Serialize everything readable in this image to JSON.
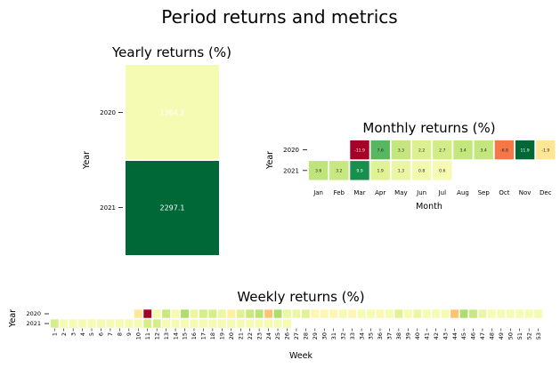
{
  "figure_title": "Period returns and metrics",
  "chart_data": [
    {
      "type": "heatmap",
      "title": "Yearly returns (%)",
      "xlabel": "",
      "ylabel": "Year",
      "x_categories": [
        ""
      ],
      "y_categories": [
        "2020",
        "2021"
      ],
      "values": [
        [
          1364.2
        ],
        [
          2297.1
        ]
      ],
      "value_labels": [
        [
          "1364.2"
        ],
        [
          "2297.1"
        ]
      ],
      "colormap": "RdYlGn",
      "grid": false
    },
    {
      "type": "heatmap",
      "title": "Monthly returns (%)",
      "xlabel": "Month",
      "ylabel": "Year",
      "x_categories": [
        "Jan",
        "Feb",
        "Mar",
        "Apr",
        "May",
        "Jun",
        "Jul",
        "Aug",
        "Sep",
        "Oct",
        "Nov",
        "Dec"
      ],
      "y_categories": [
        "2020",
        "2021"
      ],
      "values": [
        [
          null,
          null,
          -11.9,
          7.6,
          3.3,
          2.2,
          2.7,
          3.4,
          3.4,
          -6.8,
          11.9,
          -1.9
        ],
        [
          3.6,
          3.2,
          9.9,
          1.9,
          1.3,
          0.8,
          0.6,
          null,
          null,
          null,
          null,
          null
        ]
      ],
      "value_labels": [
        [
          "",
          "",
          "-11.9",
          "7.6",
          "3.3",
          "2.2",
          "2.7",
          "3.4",
          "3.4",
          "-6.8",
          "11.9",
          "-1.9"
        ],
        [
          "3.6",
          "3.2",
          "9.9",
          "1.9",
          "1.3",
          "0.8",
          "0.6",
          "",
          "",
          "",
          "",
          ""
        ]
      ],
      "colormap": "RdYlGn",
      "grid": false
    },
    {
      "type": "heatmap",
      "title": "Weekly returns (%)",
      "xlabel": "Week",
      "ylabel": "Year",
      "x_categories": [
        "1",
        "2",
        "3",
        "4",
        "5",
        "6",
        "7",
        "8",
        "9",
        "10",
        "11",
        "12",
        "13",
        "14",
        "15",
        "16",
        "17",
        "18",
        "19",
        "20",
        "21",
        "22",
        "23",
        "24",
        "25",
        "26",
        "27",
        "28",
        "29",
        "30",
        "31",
        "32",
        "33",
        "34",
        "35",
        "36",
        "37",
        "38",
        "39",
        "40",
        "41",
        "42",
        "43",
        "44",
        "45",
        "46",
        "47",
        "48",
        "49",
        "50",
        "51",
        "52",
        "53"
      ],
      "y_categories": [
        "2020",
        "2021"
      ],
      "values": [
        [
          null,
          null,
          null,
          null,
          null,
          null,
          null,
          null,
          null,
          -1.5,
          -9.5,
          0.5,
          2.5,
          0.5,
          3.5,
          1,
          2,
          2,
          1,
          -1,
          1.5,
          2.5,
          3,
          -3,
          3.5,
          1,
          1,
          1.5,
          -0.5,
          -0.5,
          -0.5,
          0.5,
          -0.5,
          0.5,
          0.5,
          -0.5,
          0.5,
          1.5,
          0.5,
          1,
          0.5,
          0.5,
          0.5,
          -3,
          3.5,
          2.5,
          1,
          0.5,
          0.5,
          0.5,
          0.5,
          0.5,
          0.5
        ],
        [
          2,
          0.5,
          0.5,
          0.5,
          0.5,
          0.5,
          0.5,
          0.5,
          0.5,
          0.5,
          2,
          2,
          0.5,
          0.5,
          0.5,
          0.5,
          0.5,
          0.5,
          0.5,
          0.5,
          0.5,
          0.5,
          0.5,
          0.5,
          0.5,
          0.5,
          null,
          null,
          null,
          null,
          null,
          null,
          null,
          null,
          null,
          null,
          null,
          null,
          null,
          null,
          null,
          null,
          null,
          null,
          null,
          null,
          null,
          null,
          null,
          null,
          null,
          null,
          null
        ]
      ],
      "colormap": "RdYlGn",
      "grid": false
    }
  ]
}
